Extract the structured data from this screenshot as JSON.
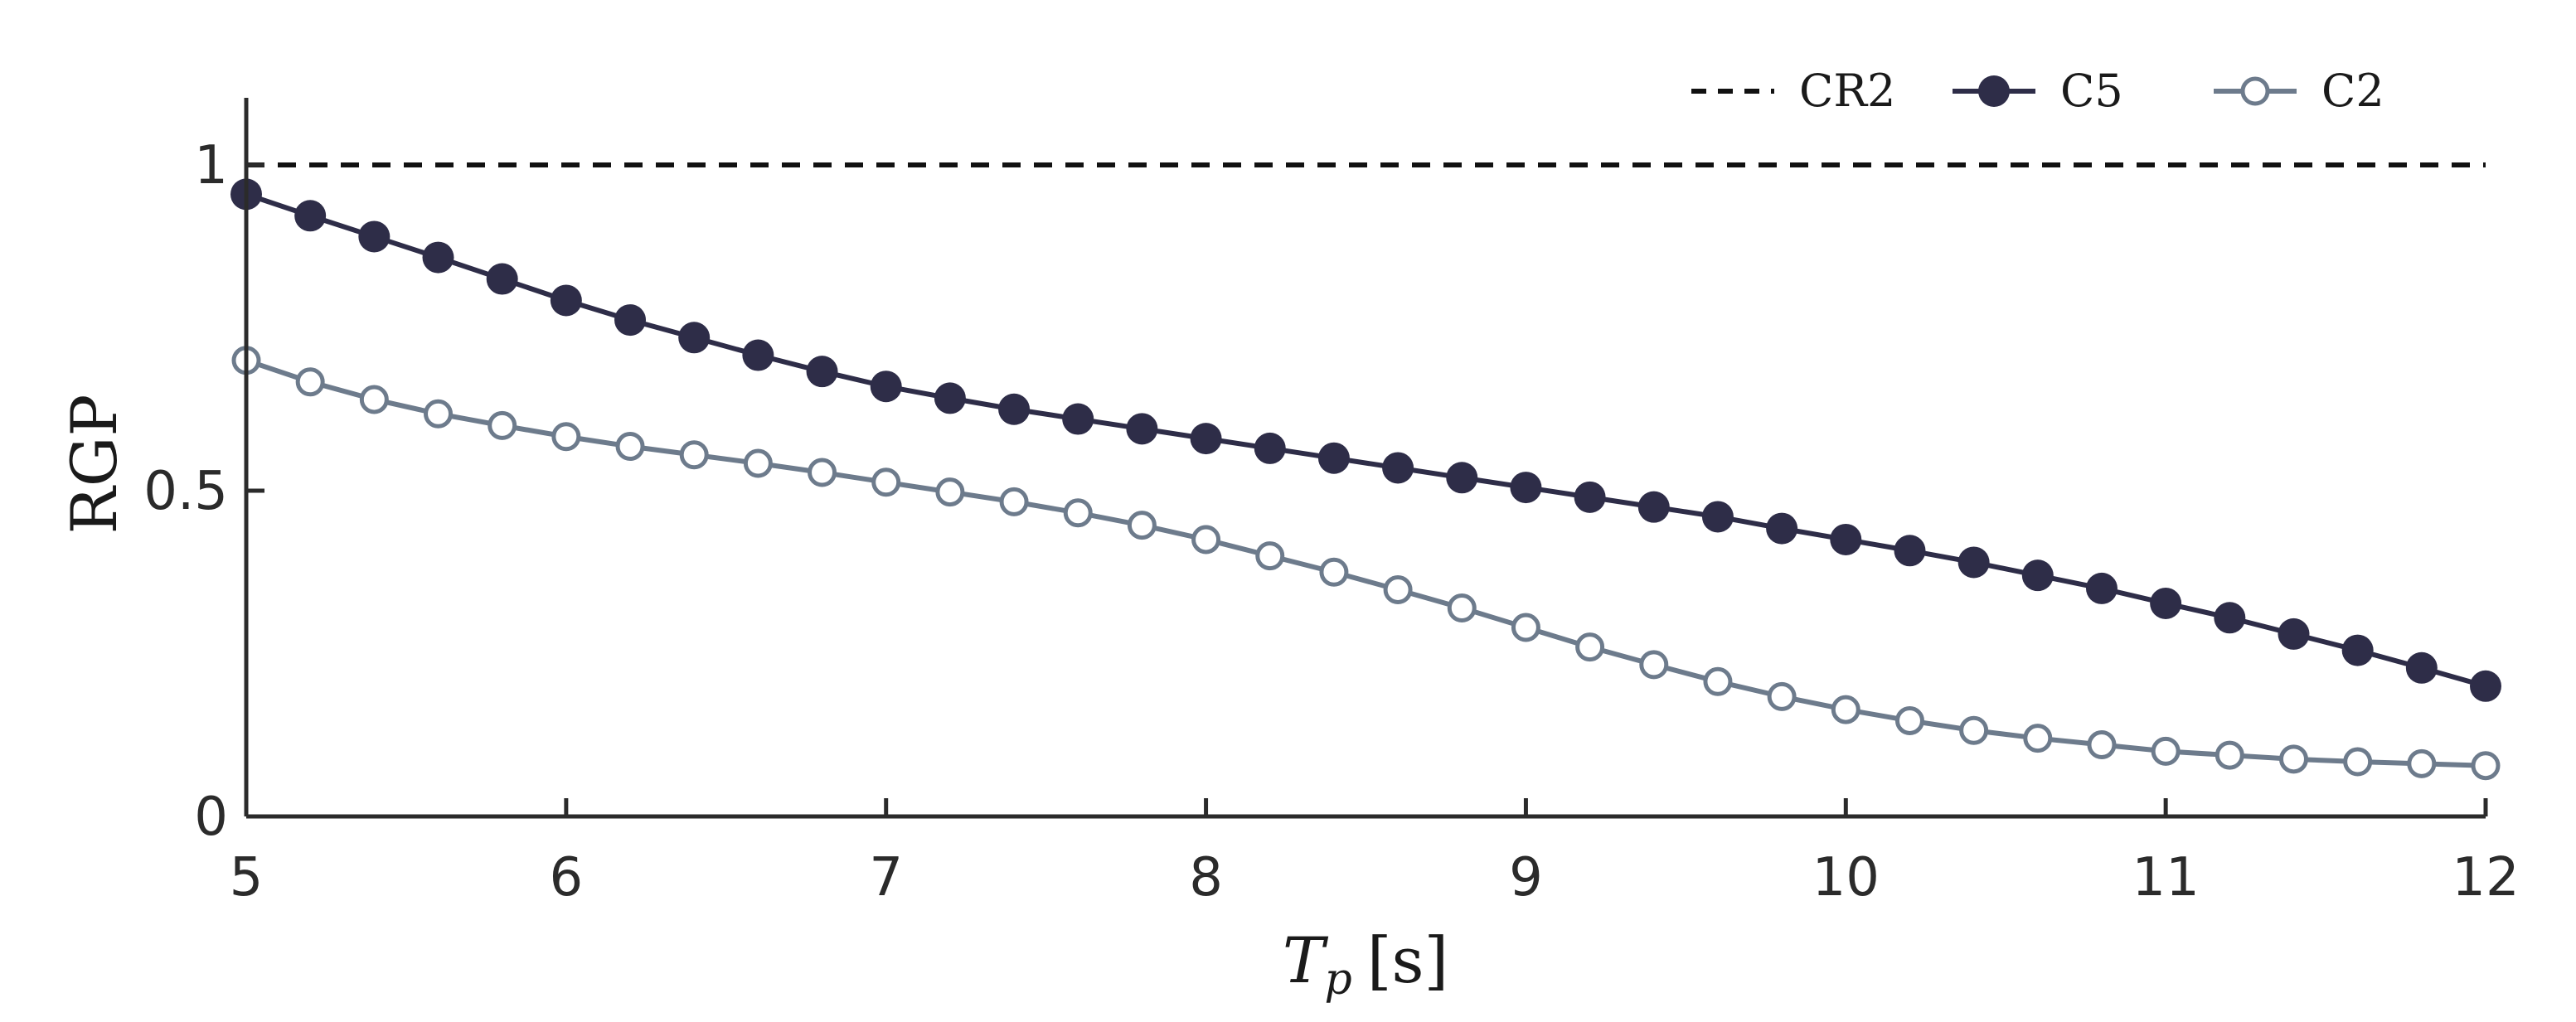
{
  "chart_data": {
    "type": "line",
    "xlabel_main": "T",
    "xlabel_sub": "p",
    "xlabel_unit": "[s]",
    "ylabel": "RGP",
    "xlim": [
      5,
      12
    ],
    "ylim": [
      0,
      1.1
    ],
    "xticks": [
      "5",
      "6",
      "7",
      "8",
      "9",
      "10",
      "11",
      "12"
    ],
    "yticks": [
      {
        "value": 0,
        "label": "0"
      },
      {
        "value": 0.5,
        "label": "0.5"
      },
      {
        "value": 1,
        "label": "1"
      }
    ],
    "grid": false,
    "legend_placement": "top-right",
    "x": [
      5.0,
      5.2,
      5.4,
      5.6,
      5.8,
      6.0,
      6.2,
      6.4,
      6.6,
      6.8,
      7.0,
      7.2,
      7.4,
      7.6,
      7.8,
      8.0,
      8.2,
      8.4,
      8.6,
      8.8,
      9.0,
      9.2,
      9.4,
      9.6,
      9.8,
      10.0,
      10.2,
      10.4,
      10.6,
      10.8,
      11.0,
      11.2,
      11.4,
      11.6,
      11.8,
      12.0
    ],
    "series": [
      {
        "name": "CR2",
        "style": "dashed",
        "marker": "none",
        "color": "#111111",
        "values": [
          1,
          1,
          1,
          1,
          1,
          1,
          1,
          1,
          1,
          1,
          1,
          1,
          1,
          1,
          1,
          1,
          1,
          1,
          1,
          1,
          1,
          1,
          1,
          1,
          1,
          1,
          1,
          1,
          1,
          1,
          1,
          1,
          1,
          1,
          1,
          1
        ]
      },
      {
        "name": "C5",
        "style": "solid",
        "marker": "filled-circle",
        "color": "#2e2d48",
        "values": [
          0.955,
          0.922,
          0.89,
          0.858,
          0.825,
          0.792,
          0.762,
          0.735,
          0.708,
          0.683,
          0.66,
          0.642,
          0.625,
          0.61,
          0.595,
          0.58,
          0.565,
          0.55,
          0.535,
          0.52,
          0.505,
          0.49,
          0.475,
          0.46,
          0.442,
          0.425,
          0.408,
          0.39,
          0.37,
          0.35,
          0.327,
          0.305,
          0.28,
          0.255,
          0.228,
          0.2
        ]
      },
      {
        "name": "C2",
        "style": "solid",
        "marker": "open-circle",
        "color": "#6d7b8c",
        "values": [
          0.7,
          0.667,
          0.64,
          0.618,
          0.6,
          0.583,
          0.568,
          0.555,
          0.542,
          0.528,
          0.513,
          0.498,
          0.483,
          0.466,
          0.447,
          0.425,
          0.4,
          0.375,
          0.348,
          0.32,
          0.29,
          0.26,
          0.233,
          0.207,
          0.184,
          0.164,
          0.147,
          0.132,
          0.12,
          0.11,
          0.1,
          0.094,
          0.088,
          0.084,
          0.081,
          0.078
        ]
      }
    ]
  }
}
